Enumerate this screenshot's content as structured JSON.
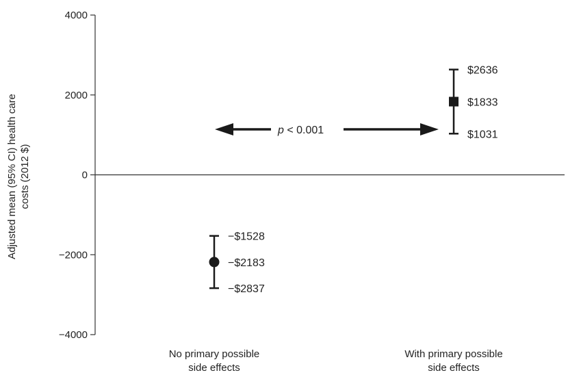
{
  "chart_data": {
    "type": "scatter",
    "ylabel_lines": [
      "Adjusted mean (95% CI) health care",
      "costs (2012 $)"
    ],
    "ylim": [
      -4000,
      4000
    ],
    "y_ticks": [
      {
        "value": 4000,
        "label": "4000"
      },
      {
        "value": 2000,
        "label": "2000"
      },
      {
        "value": 0,
        "label": "0"
      },
      {
        "value": -2000,
        "label": "−2000"
      },
      {
        "value": -4000,
        "label": "−4000"
      }
    ],
    "reference_line": 0,
    "points": [
      {
        "category_lines": [
          "No primary possible",
          "side effects"
        ],
        "marker": "circle",
        "mean": -2183,
        "lower": -2837,
        "upper": -1528,
        "mean_label": "−$2183",
        "lower_label": "−$2837",
        "upper_label": "−$1528"
      },
      {
        "category_lines": [
          "With primary possible",
          "side effects"
        ],
        "marker": "square",
        "mean": 1833,
        "lower": 1031,
        "upper": 2636,
        "mean_label": "$1833",
        "lower_label": "$1031",
        "upper_label": "$2636"
      }
    ],
    "comparison": {
      "italic": "p",
      "rest": " < 0.001"
    },
    "colors": {
      "marks": "#1a1a1a",
      "axis": "#333333"
    }
  }
}
